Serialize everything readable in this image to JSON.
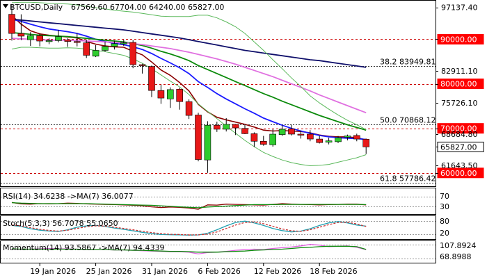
{
  "header": {
    "symbol": "BTCUSD,Daily",
    "ohlc": "67569.60 67704.00 64240.00 65827.00"
  },
  "colors": {
    "bull": "#2ecc2e",
    "bear": "#e81818",
    "ma_fast": "#8b0000",
    "ma_blue": "#1a1aff",
    "ma_green": "#0b8a0b",
    "ma_pink": "#e070e0",
    "ma_navy": "#10106b",
    "band": "#5ab85a",
    "level_red": "#cc0000",
    "fib": "#333333",
    "tag_red": "#ff0000",
    "tag_white": "#ffffff"
  },
  "chart_data": [
    {
      "type": "candlestick",
      "symbol": "BTCUSD",
      "timeframe": "Daily",
      "ylim": [
        57000,
        98500
      ],
      "x_tick_labels": [
        "19 Jan 2026",
        "25 Jan 2026",
        "31 Jan 2026",
        "6 Feb 2026",
        "12 Feb 2026",
        "18 Feb 2026"
      ],
      "y_tick_labels": [
        "97137.40",
        "90000.00",
        "82911.10",
        "80000.00",
        "75726.10",
        "70000.00",
        "68684.80",
        "65827.00",
        "61643.50",
        "60000.00"
      ],
      "price_tags": [
        {
          "value": 90000,
          "label": "90000.00",
          "style": "red"
        },
        {
          "value": 80000,
          "label": "80000.00",
          "style": "red"
        },
        {
          "value": 70000,
          "label": "70000.00",
          "style": "red"
        },
        {
          "value": 65827,
          "label": "65827.00",
          "style": "white"
        },
        {
          "value": 60000,
          "label": "60000.00",
          "style": "red"
        }
      ],
      "levels": [
        {
          "value": 90000,
          "kind": "horizontal",
          "label": ""
        },
        {
          "value": 83949.81,
          "kind": "fibonacci",
          "label": "38.2 83949.81"
        },
        {
          "value": 80000,
          "kind": "horizontal",
          "label": ""
        },
        {
          "value": 70868.12,
          "kind": "fibonacci",
          "label": "50.0 70868.12"
        },
        {
          "value": 70000,
          "kind": "horizontal",
          "label": ""
        },
        {
          "value": 57786.42,
          "kind": "fibonacci",
          "label": "61.8 57786.42"
        },
        {
          "value": 60000,
          "kind": "horizontal",
          "label": ""
        }
      ],
      "candles": [
        {
          "date": "2026-01-16",
          "o": 95600,
          "h": 97800,
          "l": 89700,
          "c": 91300
        },
        {
          "date": "2026-01-17",
          "o": 91300,
          "h": 95600,
          "l": 89800,
          "c": 90700
        },
        {
          "date": "2026-01-18",
          "o": 89900,
          "h": 91600,
          "l": 88500,
          "c": 90800
        },
        {
          "date": "2026-01-19",
          "o": 90800,
          "h": 91300,
          "l": 88400,
          "c": 89600
        },
        {
          "date": "2026-01-20",
          "o": 89600,
          "h": 90200,
          "l": 88900,
          "c": 89700
        },
        {
          "date": "2026-01-21",
          "o": 89700,
          "h": 92100,
          "l": 89300,
          "c": 90600
        },
        {
          "date": "2026-01-22",
          "o": 89800,
          "h": 90200,
          "l": 88300,
          "c": 89500
        },
        {
          "date": "2026-01-23",
          "o": 89500,
          "h": 91300,
          "l": 88400,
          "c": 89300
        },
        {
          "date": "2026-01-24",
          "o": 89200,
          "h": 89900,
          "l": 85800,
          "c": 86400
        },
        {
          "date": "2026-01-25",
          "o": 86200,
          "h": 88700,
          "l": 86000,
          "c": 87500
        },
        {
          "date": "2026-01-26",
          "o": 87500,
          "h": 89400,
          "l": 87200,
          "c": 88400
        },
        {
          "date": "2026-01-27",
          "o": 88400,
          "h": 89700,
          "l": 87700,
          "c": 89000
        },
        {
          "date": "2026-01-28",
          "o": 89000,
          "h": 89900,
          "l": 88500,
          "c": 89200
        },
        {
          "date": "2026-01-29",
          "o": 89300,
          "h": 89800,
          "l": 83500,
          "c": 84300
        },
        {
          "date": "2026-01-30",
          "o": 84300,
          "h": 84500,
          "l": 82300,
          "c": 84100
        },
        {
          "date": "2026-01-31",
          "o": 83900,
          "h": 84100,
          "l": 77000,
          "c": 78500
        },
        {
          "date": "2026-02-01",
          "o": 78500,
          "h": 79800,
          "l": 75500,
          "c": 76800
        },
        {
          "date": "2026-02-02",
          "o": 76600,
          "h": 79200,
          "l": 74600,
          "c": 78700
        },
        {
          "date": "2026-02-03",
          "o": 78800,
          "h": 79100,
          "l": 74200,
          "c": 76000
        },
        {
          "date": "2026-02-04",
          "o": 76000,
          "h": 76500,
          "l": 72100,
          "c": 72900
        },
        {
          "date": "2026-02-05",
          "o": 73000,
          "h": 73500,
          "l": 62600,
          "c": 63000
        },
        {
          "date": "2026-02-06",
          "o": 62900,
          "h": 71600,
          "l": 60000,
          "c": 70700
        },
        {
          "date": "2026-02-07",
          "o": 70700,
          "h": 71500,
          "l": 69200,
          "c": 69800
        },
        {
          "date": "2026-02-08",
          "o": 69800,
          "h": 72300,
          "l": 69300,
          "c": 70900
        },
        {
          "date": "2026-02-09",
          "o": 70900,
          "h": 71000,
          "l": 68500,
          "c": 70100
        },
        {
          "date": "2026-02-10",
          "o": 70000,
          "h": 70800,
          "l": 68700,
          "c": 68800
        },
        {
          "date": "2026-02-11",
          "o": 68800,
          "h": 69100,
          "l": 65800,
          "c": 67100
        },
        {
          "date": "2026-02-12",
          "o": 67100,
          "h": 68300,
          "l": 66100,
          "c": 66400
        },
        {
          "date": "2026-02-13",
          "o": 66300,
          "h": 69800,
          "l": 65900,
          "c": 68700
        },
        {
          "date": "2026-02-14",
          "o": 68600,
          "h": 70700,
          "l": 68300,
          "c": 69800
        },
        {
          "date": "2026-02-15",
          "o": 69900,
          "h": 70800,
          "l": 68400,
          "c": 68700
        },
        {
          "date": "2026-02-16",
          "o": 68700,
          "h": 69500,
          "l": 67700,
          "c": 68600
        },
        {
          "date": "2026-02-17",
          "o": 68700,
          "h": 69600,
          "l": 67100,
          "c": 67600
        },
        {
          "date": "2026-02-18",
          "o": 67600,
          "h": 68300,
          "l": 66600,
          "c": 66800
        },
        {
          "date": "2026-02-19",
          "o": 66900,
          "h": 67900,
          "l": 66400,
          "c": 67200
        },
        {
          "date": "2026-02-20",
          "o": 67000,
          "h": 68300,
          "l": 66700,
          "c": 67900
        },
        {
          "date": "2026-02-21",
          "o": 68000,
          "h": 68600,
          "l": 67300,
          "c": 68300
        },
        {
          "date": "2026-02-22",
          "o": 68400,
          "h": 68800,
          "l": 67100,
          "c": 67600
        },
        {
          "date": "2026-02-23",
          "o": 67569.6,
          "h": 67704,
          "l": 64240,
          "c": 65827
        }
      ],
      "overlays": [
        {
          "color_key": "ma_fast",
          "values": [
            95300,
            93400,
            91900,
            91200,
            90900,
            90700,
            90500,
            90300,
            89500,
            88900,
            88500,
            88300,
            88200,
            87300,
            86500,
            84900,
            83100,
            81900,
            80300,
            78400,
            75400,
            73700,
            72500,
            71900,
            71400,
            70900,
            70300,
            69600,
            69400,
            69500,
            69400,
            69300,
            69000,
            68500,
            68200,
            68100,
            68100,
            67900,
            67400
          ]
        },
        {
          "color_key": "ma_blue",
          "values": [
            94500,
            94000,
            93400,
            92800,
            92300,
            92000,
            91700,
            91300,
            90700,
            90000,
            89500,
            89100,
            88800,
            88300,
            87700,
            86800,
            85700,
            84700,
            83600,
            82300,
            80500,
            79200,
            77800,
            76600,
            75500,
            74400,
            73400,
            72300,
            71500,
            70700,
            70000,
            69400,
            68900,
            68400,
            68100,
            67900,
            67800,
            67700,
            67500
          ]
        },
        {
          "color_key": "ma_green",
          "values": [
            91500,
            91300,
            91100,
            90900,
            90800,
            90700,
            90600,
            90400,
            90200,
            90000,
            89800,
            89600,
            89400,
            89000,
            88600,
            88000,
            87300,
            86700,
            86000,
            85200,
            84100,
            83200,
            82300,
            81400,
            80500,
            79600,
            78700,
            77800,
            77000,
            76100,
            75300,
            74500,
            73700,
            72900,
            72200,
            71500,
            70800,
            70200,
            69600
          ]
        },
        {
          "color_key": "ma_pink",
          "values": [
            90200,
            90100,
            90000,
            89900,
            89800,
            89800,
            89800,
            89700,
            89600,
            89500,
            89400,
            89300,
            89200,
            89000,
            88800,
            88500,
            88200,
            87900,
            87500,
            87100,
            86600,
            86100,
            85600,
            85000,
            84400,
            83700,
            83000,
            82300,
            81600,
            80800,
            80000,
            79200,
            78400,
            77500,
            76700,
            75900,
            75100,
            74300,
            73500
          ]
        },
        {
          "color_key": "ma_navy",
          "values": [
            94500,
            94300,
            94100,
            93900,
            93700,
            93500,
            93300,
            93100,
            92900,
            92700,
            92500,
            92300,
            92100,
            91800,
            91500,
            91200,
            90900,
            90600,
            90300,
            89900,
            89500,
            89100,
            88700,
            88300,
            87900,
            87500,
            87200,
            86900,
            86600,
            86300,
            86000,
            85700,
            85400,
            85200,
            84900,
            84600,
            84300,
            84000,
            83700
          ]
        },
        {
          "color_key": "band",
          "values": [
            98200,
            98300,
            98300,
            98200,
            98100,
            98000,
            97900,
            97700,
            97400,
            97100,
            96800,
            96500,
            96300,
            96100,
            95800,
            95500,
            95200,
            95100,
            95100,
            95100,
            95400,
            95400,
            94800,
            93900,
            92800,
            91300,
            89400,
            87500,
            85400,
            83400,
            81300,
            79400,
            77300,
            75700,
            74300,
            73000,
            71800,
            70800,
            69700
          ]
        },
        {
          "color_key": "band",
          "values": [
            87800,
            88200,
            88200,
            88100,
            88000,
            88000,
            88100,
            88000,
            87800,
            87500,
            87200,
            86800,
            86400,
            85600,
            84600,
            83400,
            82000,
            80600,
            79300,
            77600,
            75500,
            73800,
            72200,
            70500,
            68900,
            67300,
            65900,
            64600,
            63700,
            62900,
            62300,
            61900,
            61600,
            61700,
            61900,
            62400,
            62900,
            63400,
            64100
          ]
        }
      ]
    },
    {
      "type": "line",
      "name": "RSI(14)",
      "label": "RSI(14) 34.6238 ->MA(7) 36.0077",
      "y_tick_labels": [
        "70",
        "30"
      ],
      "ylim": [
        0,
        100
      ],
      "series": [
        {
          "values": [
            45,
            39,
            38,
            40,
            39,
            40,
            42,
            41,
            39,
            38,
            37,
            36,
            35,
            33,
            31,
            27,
            24,
            26,
            25,
            22,
            17,
            35,
            34,
            38,
            37,
            36,
            35,
            34,
            37,
            40,
            38,
            37,
            36,
            35,
            36,
            37,
            38,
            38,
            34.6
          ]
        },
        {
          "values": [
            44,
            42,
            41,
            40,
            40,
            40,
            40,
            40,
            40,
            39,
            38,
            37,
            36,
            35,
            34,
            33,
            31,
            29,
            27,
            25,
            23,
            26,
            28,
            30,
            32,
            34,
            36,
            36,
            36,
            37,
            37,
            37,
            37,
            37,
            37,
            37,
            37,
            37,
            36
          ]
        }
      ]
    },
    {
      "type": "line",
      "name": "Stoch(5,3,3)",
      "label": "Stoch(5,3,3) 56.7078 55.0650",
      "y_tick_labels": [
        "80",
        "20"
      ],
      "ylim": [
        0,
        100
      ],
      "series": [
        {
          "values": [
            60,
            55,
            45,
            38,
            34,
            32,
            40,
            52,
            58,
            60,
            55,
            48,
            42,
            35,
            28,
            22,
            18,
            17,
            16,
            15,
            16,
            24,
            40,
            58,
            74,
            80,
            72,
            60,
            46,
            36,
            30,
            34,
            45,
            60,
            72,
            78,
            72,
            62,
            56.7
          ]
        },
        {
          "values": [
            62,
            58,
            50,
            42,
            37,
            34,
            38,
            46,
            54,
            58,
            57,
            52,
            46,
            40,
            33,
            27,
            22,
            19,
            18,
            16,
            16,
            20,
            30,
            46,
            62,
            74,
            76,
            68,
            56,
            44,
            35,
            33,
            40,
            52,
            64,
            74,
            75,
            67,
            55.1
          ]
        }
      ]
    },
    {
      "type": "line",
      "name": "Momentum(14)",
      "label": "Momentum(14) 93.5867 ->MA(7) 94.4339",
      "y_tick_labels": [
        "107.8924",
        "68.8988"
      ],
      "ylim": [
        60,
        115
      ],
      "series": [
        {
          "values": [
            95,
            94,
            95,
            96,
            97,
            96,
            96,
            95,
            94,
            94,
            94,
            93,
            93,
            92,
            91,
            90,
            89,
            88,
            88,
            87,
            82,
            86,
            87,
            89,
            92,
            94,
            95,
            94,
            97,
            99,
            101,
            104,
            108,
            106,
            102,
            103,
            104,
            100,
            93.6
          ]
        },
        {
          "values": [
            96,
            95,
            95,
            95,
            95,
            95,
            95,
            95,
            94,
            94,
            94,
            93,
            93,
            92,
            92,
            91,
            90,
            89,
            89,
            88,
            87,
            87,
            87,
            88,
            89,
            90,
            92,
            93,
            94,
            95,
            97,
            99,
            100,
            102,
            103,
            103,
            103,
            102,
            94.4
          ]
        }
      ]
    }
  ]
}
